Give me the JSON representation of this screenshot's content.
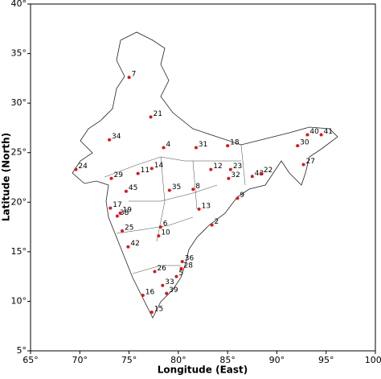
{
  "chart_data": {
    "type": "scatter",
    "xlabel": "Longitude (East)",
    "ylabel": "Latitude (North)",
    "xlim": [
      65,
      100
    ],
    "ylim": [
      5,
      40
    ],
    "xticks": [
      {
        "value": 65,
        "label": "65°"
      },
      {
        "value": 70,
        "label": "70°"
      },
      {
        "value": 75,
        "label": "75°"
      },
      {
        "value": 80,
        "label": "80°"
      },
      {
        "value": 85,
        "label": "85°"
      },
      {
        "value": 90,
        "label": "90°"
      },
      {
        "value": 95,
        "label": "95°"
      },
      {
        "value": 100,
        "label": "100°"
      }
    ],
    "yticks": [
      {
        "value": 5,
        "label": "5°"
      },
      {
        "value": 10,
        "label": "10°"
      },
      {
        "value": 15,
        "label": "15°"
      },
      {
        "value": 20,
        "label": "20°"
      },
      {
        "value": 25,
        "label": "25°"
      },
      {
        "value": 30,
        "label": "30°"
      },
      {
        "value": 35,
        "label": "35°"
      },
      {
        "value": 40,
        "label": "40°"
      }
    ],
    "color": "#e0141e",
    "labels": [
      "7",
      "21",
      "34",
      "4",
      "31",
      "18",
      "40",
      "41",
      "30",
      "24",
      "14",
      "11",
      "29",
      "12",
      "23",
      "32",
      "43",
      "22",
      "27",
      "45",
      "35",
      "8",
      "17",
      "38",
      "19",
      "9",
      "13",
      "2",
      "6",
      "25",
      "10",
      "42",
      "36",
      "28",
      "26",
      "5",
      "33",
      "39",
      "16",
      "15"
    ],
    "x": [
      75.0,
      77.2,
      73.0,
      78.5,
      81.8,
      85.0,
      93.1,
      94.5,
      92.1,
      69.6,
      77.3,
      75.9,
      73.2,
      83.3,
      85.3,
      85.1,
      87.5,
      88.4,
      92.7,
      74.7,
      79.1,
      81.5,
      73.1,
      73.8,
      74.1,
      86.0,
      82.1,
      83.4,
      78.2,
      74.3,
      78.0,
      74.9,
      80.4,
      80.3,
      77.6,
      79.8,
      78.4,
      78.8,
      76.4,
      77.3
    ],
    "values": [
      32.6,
      28.6,
      26.3,
      25.5,
      25.5,
      25.7,
      26.8,
      26.8,
      25.7,
      23.3,
      23.4,
      22.9,
      22.4,
      23.3,
      23.3,
      22.4,
      22.6,
      22.9,
      23.8,
      21.1,
      21.2,
      21.3,
      19.4,
      18.6,
      18.9,
      20.4,
      19.3,
      17.7,
      17.5,
      17.1,
      16.6,
      15.5,
      14.0,
      13.3,
      13.0,
      12.5,
      11.6,
      10.8,
      10.6,
      8.9
    ]
  }
}
